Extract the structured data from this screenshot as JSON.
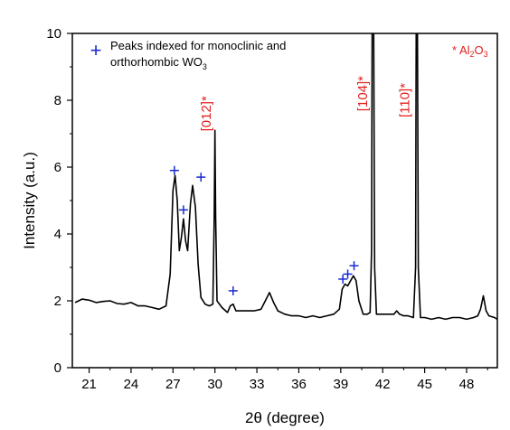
{
  "chart_data": {
    "type": "line",
    "title": "",
    "xlabel": "2θ (degree)",
    "ylabel": "Intensity (a.u.)",
    "xlim": [
      19.8,
      50.2
    ],
    "ylim": [
      0,
      10
    ],
    "xticks": [
      "21",
      "24",
      "27",
      "30",
      "33",
      "36",
      "39",
      "42",
      "45",
      "48"
    ],
    "yticks": [
      "0",
      "2",
      "4",
      "6",
      "8",
      "10"
    ],
    "grid": false,
    "legend": {
      "placement": "top-left",
      "line1": "Peaks indexed for monoclinic and",
      "line2": "orthorhombic WO",
      "line2_sub": "3"
    },
    "alumina_note": {
      "prefix": "* Al",
      "sub1": "2",
      "mid": "O",
      "sub2": "3",
      "color": "#e0201c"
    },
    "series": [
      {
        "color": "#000000",
        "points": [
          [
            20.0,
            1.95
          ],
          [
            20.5,
            2.05
          ],
          [
            21.0,
            2.02
          ],
          [
            21.5,
            1.95
          ],
          [
            22.0,
            1.98
          ],
          [
            22.5,
            2.0
          ],
          [
            23.0,
            1.92
          ],
          [
            23.5,
            1.9
          ],
          [
            24.0,
            1.95
          ],
          [
            24.5,
            1.85
          ],
          [
            25.0,
            1.85
          ],
          [
            25.5,
            1.8
          ],
          [
            26.0,
            1.75
          ],
          [
            26.5,
            1.85
          ],
          [
            26.8,
            2.8
          ],
          [
            27.0,
            5.3
          ],
          [
            27.15,
            5.75
          ],
          [
            27.3,
            5.0
          ],
          [
            27.45,
            3.5
          ],
          [
            27.6,
            3.9
          ],
          [
            27.75,
            4.45
          ],
          [
            27.9,
            3.8
          ],
          [
            28.05,
            3.5
          ],
          [
            28.25,
            4.9
          ],
          [
            28.4,
            5.45
          ],
          [
            28.6,
            4.8
          ],
          [
            28.8,
            3.1
          ],
          [
            29.0,
            2.1
          ],
          [
            29.3,
            1.9
          ],
          [
            29.6,
            1.85
          ],
          [
            29.85,
            1.9
          ],
          [
            29.95,
            4.5
          ],
          [
            30.0,
            7.1
          ],
          [
            30.05,
            4.5
          ],
          [
            30.15,
            2.0
          ],
          [
            30.5,
            1.8
          ],
          [
            30.9,
            1.65
          ],
          [
            31.1,
            1.85
          ],
          [
            31.3,
            1.9
          ],
          [
            31.5,
            1.7
          ],
          [
            31.8,
            1.7
          ],
          [
            32.2,
            1.7
          ],
          [
            32.8,
            1.7
          ],
          [
            33.3,
            1.75
          ],
          [
            33.6,
            2.0
          ],
          [
            33.9,
            2.25
          ],
          [
            34.2,
            1.95
          ],
          [
            34.5,
            1.7
          ],
          [
            35.0,
            1.6
          ],
          [
            35.5,
            1.55
          ],
          [
            36.0,
            1.55
          ],
          [
            36.5,
            1.5
          ],
          [
            37.0,
            1.55
          ],
          [
            37.5,
            1.5
          ],
          [
            38.0,
            1.55
          ],
          [
            38.5,
            1.6
          ],
          [
            38.9,
            1.75
          ],
          [
            39.1,
            2.35
          ],
          [
            39.3,
            2.5
          ],
          [
            39.5,
            2.45
          ],
          [
            39.7,
            2.6
          ],
          [
            39.9,
            2.75
          ],
          [
            40.1,
            2.6
          ],
          [
            40.3,
            2.0
          ],
          [
            40.6,
            1.6
          ],
          [
            40.9,
            1.6
          ],
          [
            41.1,
            1.65
          ],
          [
            41.2,
            3.5
          ],
          [
            41.25,
            10.5
          ],
          [
            41.35,
            10.5
          ],
          [
            41.42,
            3.0
          ],
          [
            41.55,
            1.6
          ],
          [
            42.0,
            1.6
          ],
          [
            42.5,
            1.6
          ],
          [
            42.8,
            1.6
          ],
          [
            43.0,
            1.7
          ],
          [
            43.2,
            1.6
          ],
          [
            43.5,
            1.55
          ],
          [
            43.8,
            1.55
          ],
          [
            44.2,
            1.5
          ],
          [
            44.35,
            3.0
          ],
          [
            44.4,
            10.5
          ],
          [
            44.48,
            10.5
          ],
          [
            44.55,
            3.0
          ],
          [
            44.7,
            1.5
          ],
          [
            45.0,
            1.5
          ],
          [
            45.5,
            1.45
          ],
          [
            46.0,
            1.5
          ],
          [
            46.5,
            1.45
          ],
          [
            47.0,
            1.5
          ],
          [
            47.5,
            1.5
          ],
          [
            48.0,
            1.45
          ],
          [
            48.5,
            1.5
          ],
          [
            48.8,
            1.55
          ],
          [
            49.0,
            1.75
          ],
          [
            49.2,
            2.15
          ],
          [
            49.4,
            1.7
          ],
          [
            49.6,
            1.55
          ],
          [
            50.0,
            1.5
          ],
          [
            50.2,
            1.45
          ]
        ]
      }
    ],
    "markers": [
      {
        "symbol": "+",
        "x": 27.1,
        "y": 5.9
      },
      {
        "symbol": "+",
        "x": 27.75,
        "y": 4.72
      },
      {
        "symbol": "+",
        "x": 29.0,
        "y": 5.7
      },
      {
        "symbol": "+",
        "x": 31.3,
        "y": 2.3
      },
      {
        "symbol": "+",
        "x": 39.15,
        "y": 2.65
      },
      {
        "symbol": "+",
        "x": 39.5,
        "y": 2.8
      },
      {
        "symbol": "+",
        "x": 39.95,
        "y": 3.05
      }
    ],
    "marker_color": "#1c2ad0",
    "annotations": [
      {
        "text": "[012]*",
        "x": 29.7,
        "y": 7.6,
        "color": "#e0201c"
      },
      {
        "text": "[104]*",
        "x": 40.9,
        "y": 8.2,
        "color": "#e0201c"
      },
      {
        "text": "[110]*",
        "x": 43.9,
        "y": 8.0,
        "color": "#e0201c"
      }
    ]
  }
}
